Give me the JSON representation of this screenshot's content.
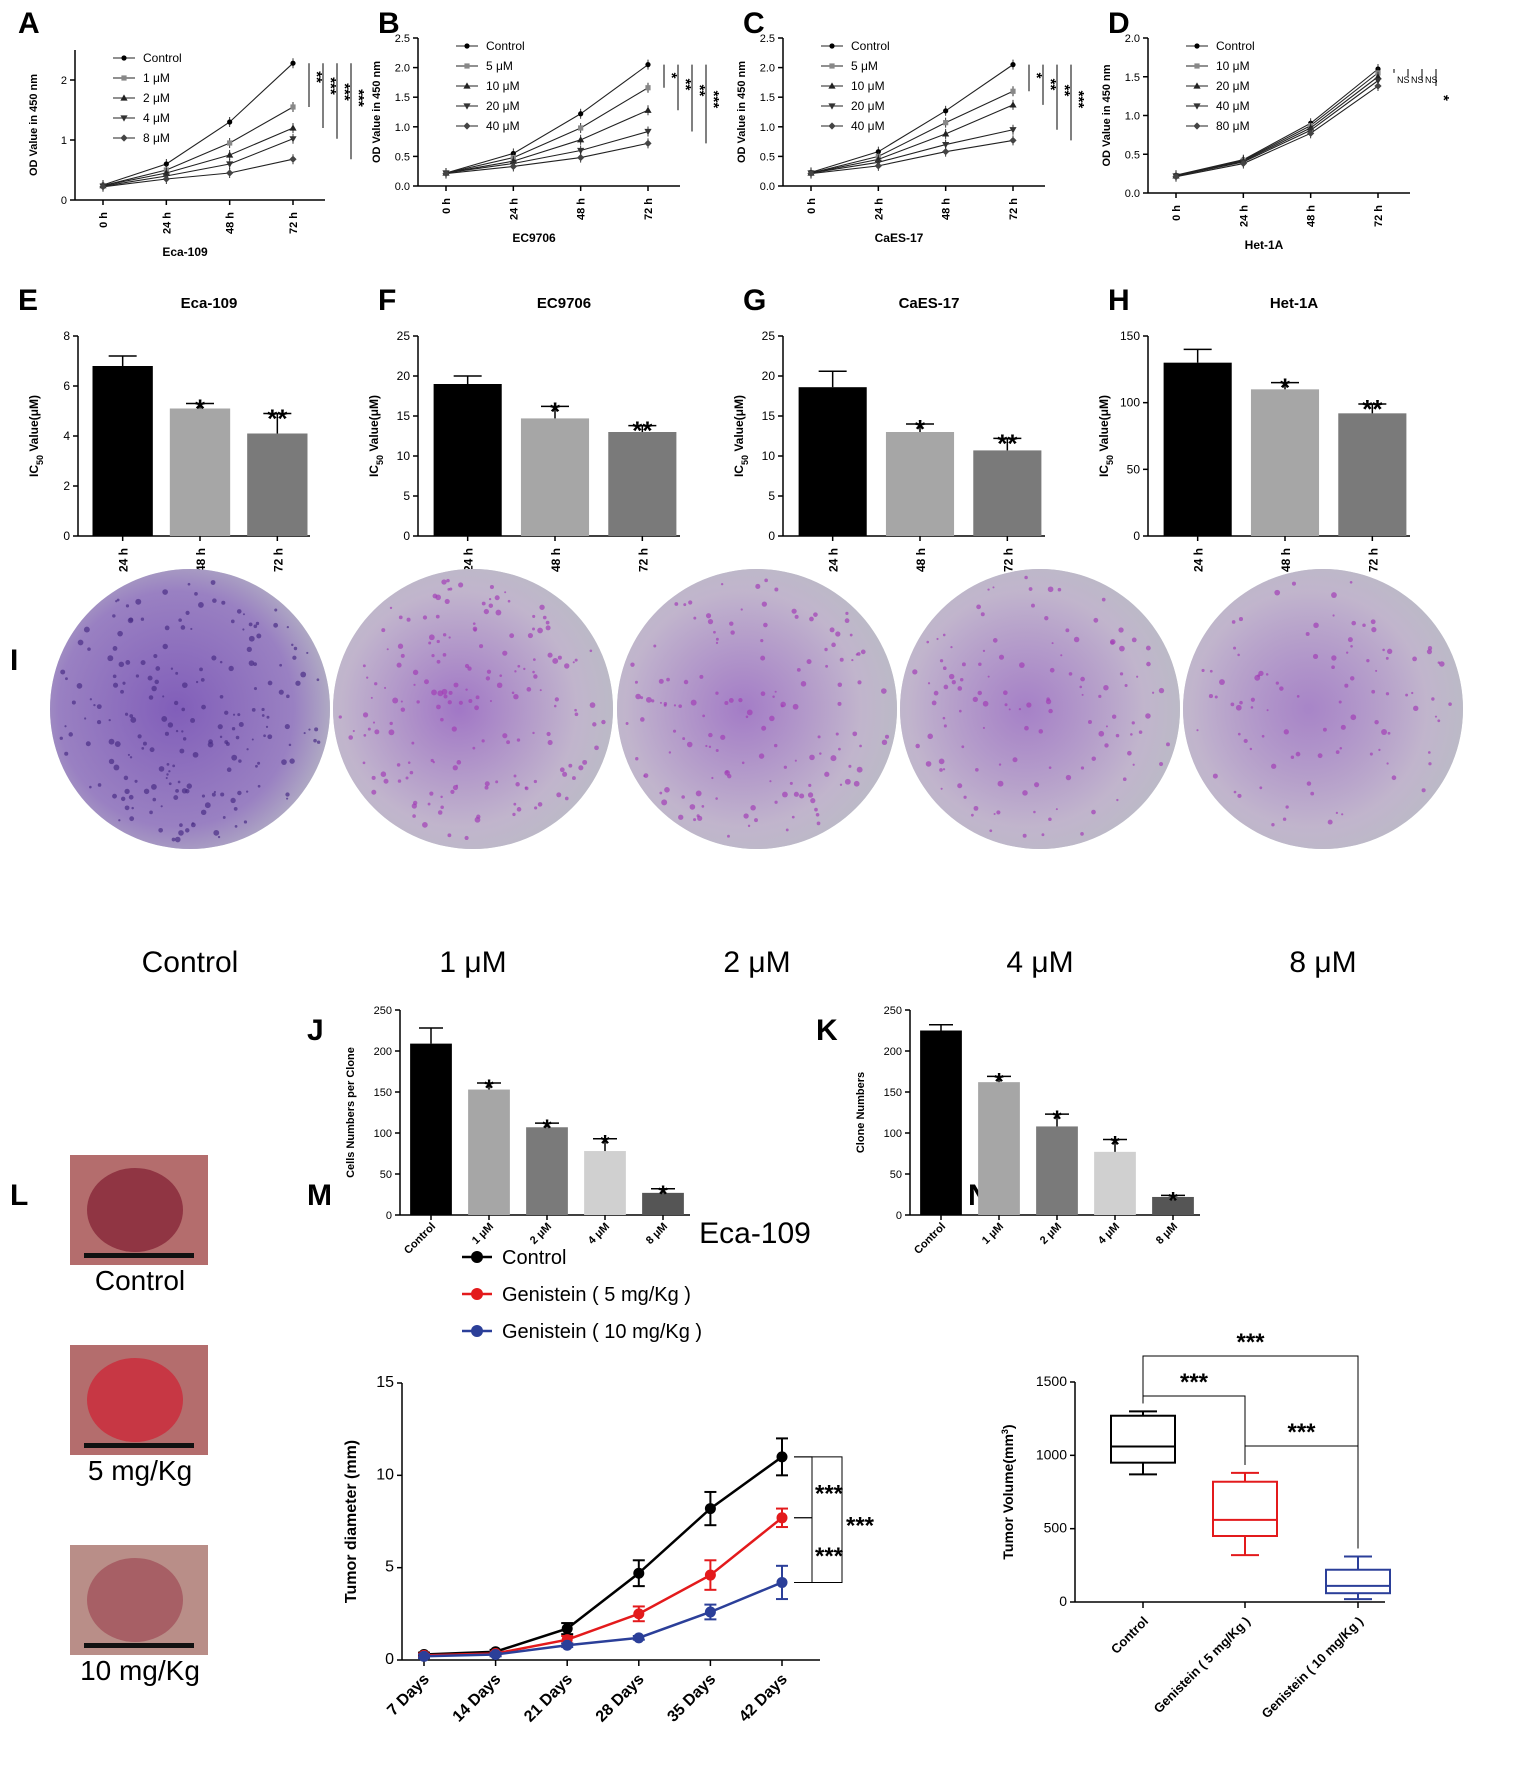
{
  "colors": {
    "black": "#000000",
    "light_gray": "#a6a6a6",
    "mid_gray": "#7a7a7a",
    "pale_gray": "#d0d0d0",
    "dark_gray": "#555555",
    "red": "#e31a1c",
    "blue": "#2b3f99",
    "stain_purple": "#8a4fb5",
    "stain_magenta": "#b24cc4",
    "tissue_red": "#b83a45"
  },
  "panel_letters": [
    "A",
    "B",
    "C",
    "D",
    "E",
    "F",
    "G",
    "H",
    "I",
    "J",
    "K",
    "L",
    "M",
    "N"
  ],
  "photos_I": {
    "labels": [
      "Control",
      "1 μM",
      "2 μM",
      "4 μM",
      "8 μM"
    ],
    "stain_level": [
      1.0,
      0.8,
      0.6,
      0.45,
      0.3
    ]
  },
  "photos_L": {
    "labels": [
      "Control",
      "5 mg/Kg",
      "10 mg/Kg"
    ]
  },
  "eca_label": "Eca-109",
  "chart_data": [
    {
      "panel": "A",
      "type": "line",
      "x": [
        "0 h",
        "24 h",
        "48 h",
        "72 h"
      ],
      "xlabel": "Eca-109",
      "ylabel": "OD Value in 450 nm",
      "ylim": [
        0,
        2.5
      ],
      "yticks": [
        0,
        1,
        2
      ],
      "series": [
        {
          "name": "Control",
          "values": [
            0.25,
            0.6,
            1.3,
            2.28
          ]
        },
        {
          "name": "1 μM",
          "values": [
            0.24,
            0.5,
            0.95,
            1.55
          ]
        },
        {
          "name": "2 μM",
          "values": [
            0.24,
            0.45,
            0.75,
            1.2
          ]
        },
        {
          "name": "4 μM",
          "values": [
            0.23,
            0.4,
            0.6,
            1.02
          ]
        },
        {
          "name": "8 μM",
          "values": [
            0.22,
            0.35,
            0.45,
            0.68
          ]
        }
      ],
      "sig": [
        "**",
        "***",
        "***",
        "***"
      ],
      "legend": "top-left"
    },
    {
      "panel": "B",
      "type": "line",
      "x": [
        "0 h",
        "24 h",
        "48 h",
        "72 h"
      ],
      "xlabel": "EC9706",
      "ylabel": "OD Value in 450 nm",
      "ylim": [
        0,
        2.5
      ],
      "yticks": [
        0.0,
        0.5,
        1.0,
        1.5,
        2.0,
        2.5
      ],
      "series": [
        {
          "name": "Control",
          "values": [
            0.22,
            0.55,
            1.22,
            2.05
          ]
        },
        {
          "name": "5 μM",
          "values": [
            0.22,
            0.48,
            0.98,
            1.66
          ]
        },
        {
          "name": "10 μM",
          "values": [
            0.22,
            0.42,
            0.78,
            1.28
          ]
        },
        {
          "name": "20 μM",
          "values": [
            0.22,
            0.38,
            0.6,
            0.92
          ]
        },
        {
          "name": "40 μM",
          "values": [
            0.21,
            0.33,
            0.48,
            0.72
          ]
        }
      ],
      "sig": [
        "*",
        "**",
        "**",
        "***"
      ],
      "legend": "top-left"
    },
    {
      "panel": "C",
      "type": "line",
      "x": [
        "0 h",
        "24 h",
        "48 h",
        "72 h"
      ],
      "xlabel": "CaES-17",
      "ylabel": "OD Value in 450 nm",
      "ylim": [
        0,
        2.5
      ],
      "yticks": [
        0.0,
        0.5,
        1.0,
        1.5,
        2.0,
        2.5
      ],
      "series": [
        {
          "name": "Control",
          "values": [
            0.23,
            0.58,
            1.27,
            2.05
          ]
        },
        {
          "name": "5 μM",
          "values": [
            0.22,
            0.5,
            1.07,
            1.6
          ]
        },
        {
          "name": "10 μM",
          "values": [
            0.22,
            0.45,
            0.88,
            1.37
          ]
        },
        {
          "name": "20 μM",
          "values": [
            0.22,
            0.4,
            0.7,
            0.95
          ]
        },
        {
          "name": "40 μM",
          "values": [
            0.21,
            0.34,
            0.58,
            0.77
          ]
        }
      ],
      "sig": [
        "*",
        "**",
        "**",
        "***"
      ],
      "legend": "top-left"
    },
    {
      "panel": "D",
      "type": "line",
      "x": [
        "0 h",
        "24 h",
        "48 h",
        "72 h"
      ],
      "xlabel": "Het-1A",
      "ylabel": "OD Value in 450 nm",
      "ylim": [
        0,
        2.0
      ],
      "yticks": [
        0.0,
        0.5,
        1.0,
        1.5,
        2.0
      ],
      "series": [
        {
          "name": "Control",
          "values": [
            0.23,
            0.43,
            0.9,
            1.6
          ]
        },
        {
          "name": "10 μM",
          "values": [
            0.22,
            0.42,
            0.87,
            1.55
          ]
        },
        {
          "name": "20 μM",
          "values": [
            0.22,
            0.41,
            0.84,
            1.5
          ]
        },
        {
          "name": "40 μM",
          "values": [
            0.22,
            0.4,
            0.81,
            1.45
          ]
        },
        {
          "name": "80 μM",
          "values": [
            0.21,
            0.38,
            0.77,
            1.38
          ]
        }
      ],
      "sig": [
        "NS",
        "NS",
        "NS",
        "*"
      ],
      "legend": "top-left"
    },
    {
      "panel": "E",
      "type": "bar",
      "title": "Eca-109",
      "categories": [
        "24 h",
        "48 h",
        "72 h"
      ],
      "values": [
        6.8,
        5.1,
        4.1
      ],
      "errors": [
        0.4,
        0.2,
        0.8
      ],
      "sig": [
        "",
        "*",
        "**"
      ],
      "ylabel": "IC50 Value(μM)",
      "ylim": [
        0,
        8
      ],
      "yticks": [
        0,
        2,
        4,
        6,
        8
      ]
    },
    {
      "panel": "F",
      "type": "bar",
      "title": "EC9706",
      "categories": [
        "24 h",
        "48 h",
        "72 h"
      ],
      "values": [
        19.0,
        14.7,
        13.0
      ],
      "errors": [
        1.0,
        1.5,
        0.8
      ],
      "sig": [
        "",
        "*",
        "**"
      ],
      "ylabel": "IC50 Value(μM)",
      "ylim": [
        0,
        25
      ],
      "yticks": [
        0,
        5,
        10,
        15,
        20,
        25
      ]
    },
    {
      "panel": "G",
      "type": "bar",
      "title": "CaES-17",
      "categories": [
        "24 h",
        "48 h",
        "72 h"
      ],
      "values": [
        18.6,
        13.0,
        10.7
      ],
      "errors": [
        2.0,
        1.0,
        1.5
      ],
      "sig": [
        "",
        "*",
        "**"
      ],
      "ylabel": "IC50 Value(μM)",
      "ylim": [
        0,
        25
      ],
      "yticks": [
        0,
        5,
        10,
        15,
        20,
        25
      ]
    },
    {
      "panel": "H",
      "type": "bar",
      "title": "Het-1A",
      "categories": [
        "24 h",
        "48 h",
        "72 h"
      ],
      "values": [
        130,
        110,
        92
      ],
      "errors": [
        10,
        5,
        7
      ],
      "sig": [
        "",
        "*",
        "**"
      ],
      "ylabel": "IC50 Value(μM)",
      "ylim": [
        0,
        150
      ],
      "yticks": [
        0,
        50,
        100,
        150
      ]
    },
    {
      "panel": "J",
      "type": "bar",
      "categories": [
        "Control",
        "1 μM",
        "2 μM",
        "4 μM",
        "8 μM"
      ],
      "values": [
        209,
        153,
        107,
        78,
        27
      ],
      "errors": [
        19,
        8,
        5,
        15,
        5
      ],
      "sig": [
        "",
        "*",
        "*",
        "*",
        "*"
      ],
      "ylabel": "Cells Numbers per Clone",
      "ylim": [
        0,
        250
      ],
      "yticks": [
        0,
        50,
        100,
        150,
        200,
        250
      ]
    },
    {
      "panel": "K",
      "type": "bar",
      "categories": [
        "Control",
        "1 μM",
        "2 μM",
        "4 μM",
        "8 μM"
      ],
      "values": [
        225,
        162,
        108,
        77,
        22
      ],
      "errors": [
        7,
        7,
        15,
        15,
        2
      ],
      "sig": [
        "",
        "*",
        "*",
        "*",
        "*"
      ],
      "ylabel": "Clone Numbers",
      "ylim": [
        0,
        250
      ],
      "yticks": [
        0,
        50,
        100,
        150,
        200,
        250
      ]
    },
    {
      "panel": "M",
      "type": "line",
      "x": [
        "7 Days",
        "14 Days",
        "21 Days",
        "28 Days",
        "35 Days",
        "42 Days"
      ],
      "ylabel": "Tumor diameter (mm)",
      "ylim": [
        0,
        15
      ],
      "yticks": [
        0,
        5,
        10,
        15
      ],
      "series": [
        {
          "name": "Control",
          "values": [
            0.3,
            0.45,
            1.7,
            4.7,
            8.2,
            11.0
          ],
          "errors": [
            0.1,
            0.1,
            0.3,
            0.7,
            0.9,
            1.0
          ]
        },
        {
          "name": "Genistein ( 5 mg/Kg )",
          "values": [
            0.25,
            0.35,
            1.1,
            2.5,
            4.6,
            7.7
          ],
          "errors": [
            0.1,
            0.1,
            0.2,
            0.4,
            0.8,
            0.5
          ]
        },
        {
          "name": "Genistein ( 10 mg/Kg )",
          "values": [
            0.2,
            0.3,
            0.8,
            1.2,
            2.6,
            4.2
          ],
          "errors": [
            0.1,
            0.1,
            0.1,
            0.1,
            0.4,
            0.9
          ]
        }
      ],
      "sig": [
        "***",
        "***",
        "***"
      ],
      "legend": "top-left"
    },
    {
      "panel": "N",
      "type": "box",
      "categories": [
        "Control",
        "Genistein ( 5 mg/Kg )",
        "Genistein ( 10 mg/Kg )"
      ],
      "boxes": [
        {
          "min": 870,
          "q1": 950,
          "median": 1060,
          "q3": 1270,
          "max": 1300
        },
        {
          "min": 320,
          "q1": 450,
          "median": 560,
          "q3": 820,
          "max": 880
        },
        {
          "min": 20,
          "q1": 60,
          "median": 110,
          "q3": 220,
          "max": 310
        }
      ],
      "sig": [
        "***",
        "***",
        "***"
      ],
      "ylabel": "Tumor Volume(mm3)",
      "ylim": [
        0,
        1500
      ],
      "yticks": [
        0,
        500,
        1000,
        1500
      ]
    }
  ]
}
